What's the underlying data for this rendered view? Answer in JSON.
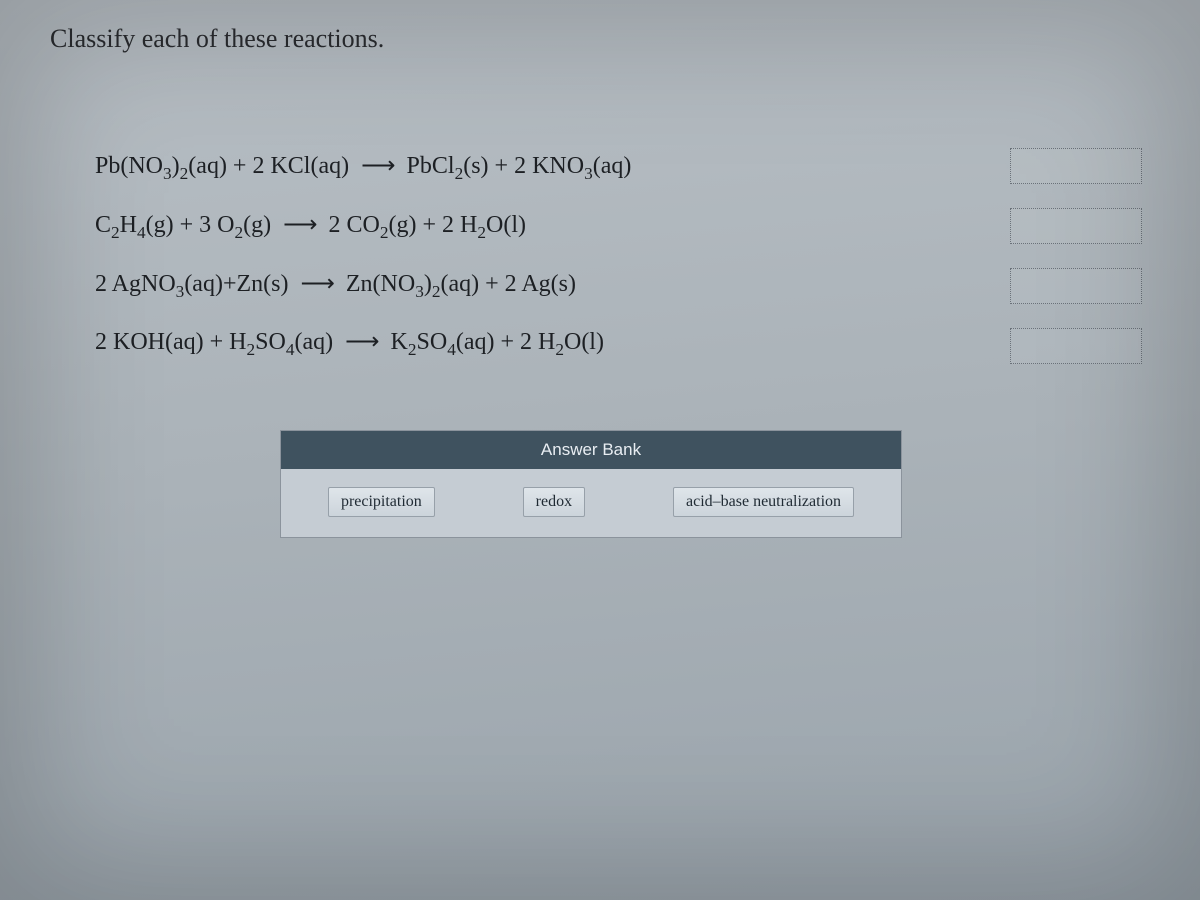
{
  "prompt": "Classify each of these reactions.",
  "equations": [
    {
      "html": "Pb(NO<sub>3</sub>)<sub>2</sub>(aq) + 2 KCl(aq) <span class='arrow'>⟶</span> PbCl<sub>2</sub>(s) + 2 KNO<sub>3</sub>(aq)"
    },
    {
      "html": "C<sub>2</sub>H<sub>4</sub>(g) + 3 O<sub>2</sub>(g) <span class='arrow'>⟶</span> 2 CO<sub>2</sub>(g) + 2 H<sub>2</sub>O(l)"
    },
    {
      "html": "2 AgNO<sub>3</sub>(aq)+Zn(s) <span class='arrow'>⟶</span> Zn(NO<sub>3</sub>)<sub>2</sub>(aq) + 2 Ag(s)"
    },
    {
      "html": "2 KOH(aq) + H<sub>2</sub>SO<sub>4</sub>(aq) <span class='arrow'>⟶</span> K<sub>2</sub>SO<sub>4</sub>(aq) + 2 H<sub>2</sub>O(l)"
    }
  ],
  "answer_bank": {
    "title": "Answer Bank",
    "items": [
      "precipitation",
      "redox",
      "acid–base neutralization"
    ]
  },
  "drop_targets": 4,
  "styling": {
    "background_gradient": [
      "#b8bfc5",
      "#aab2b8",
      "#9aa4ac"
    ],
    "prompt_fontsize": 26,
    "equation_fontsize": 24,
    "equation_color": "#1d2024",
    "bank_header_bg": "#3f525f",
    "bank_header_fg": "#e8edf2",
    "bank_body_bg": "#c5ccd3",
    "chip_bg": [
      "#dfe5ea",
      "#ccd4db"
    ],
    "chip_border": "#97a0a9",
    "drop_border": "#6b727a",
    "drop_width": 130,
    "drop_height": 34
  }
}
